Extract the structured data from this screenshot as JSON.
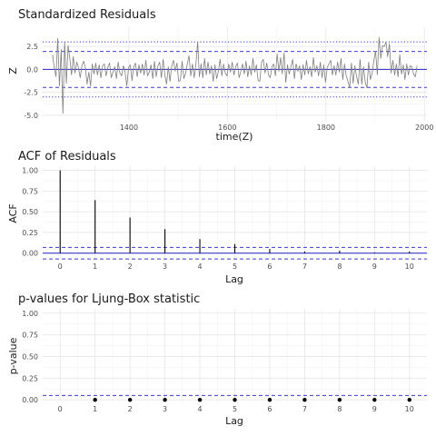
{
  "chart_data": [
    {
      "type": "line",
      "title": "Standardized Residuals",
      "xlabel": "time(Z)",
      "ylabel": "Z",
      "xlim": [
        1225,
        2005
      ],
      "ylim": [
        -5.6,
        4.6
      ],
      "x_ticks": [
        1400,
        1600,
        1800,
        2000
      ],
      "y_ticks": [
        -5.0,
        -2.5,
        0.0,
        2.5
      ],
      "y_tick_labels": [
        "-5.0",
        "-2.5",
        "0.0",
        "2.5"
      ],
      "series": [
        {
          "x_start": 1245,
          "x_end": 1985,
          "values": [
            1.6,
            0.2,
            -0.8,
            3.4,
            -1.8,
            2.2,
            -4.8,
            3.0,
            -1.5,
            2.6,
            1.2,
            -0.6,
            1.4,
            -0.4,
            0.8,
            0.2,
            -0.9,
            0.4,
            0.9,
            0.2,
            -1.6,
            -0.3,
            -1.8,
            0.6,
            -0.5,
            0.7,
            -0.6,
            0.5,
            -0.9,
            0.4,
            0.6,
            -0.7,
            0.2,
            0.7,
            -0.9,
            -0.3,
            0.3,
            -1.0,
            0.8,
            -0.4,
            -0.7,
            0.4,
            -0.3,
            -1.8,
            0.2,
            0.5,
            -1.2,
            0.3,
            0.7,
            -0.8,
            0.5,
            -0.4,
            0.6,
            -0.6,
            1.0,
            -0.7,
            -0.3,
            0.5,
            -1.0,
            0.9,
            -0.8,
            0.4,
            0.8,
            -0.9,
            1.1,
            -0.6,
            -1.6,
            0.3,
            -1.3,
            0.4,
            1.0,
            -0.2,
            0.7,
            -1.3,
            -1.2,
            0.9,
            -1.0,
            -0.4,
            0.6,
            1.5,
            -0.7,
            0.6,
            -0.9,
            0.6,
            3.0,
            -0.8,
            0.6,
            -0.9,
            1.2,
            -0.6,
            0.8,
            -0.5,
            0.4,
            -1.3,
            0.5,
            -1.0,
            -0.2,
            1.1,
            -0.7,
            0.6,
            -0.4,
            -0.7,
            0.6,
            -0.3,
            0.8,
            -0.6,
            0.3,
            0.7,
            -0.9,
            -0.2,
            0.6,
            -0.5,
            0.9,
            -0.8,
            0.4,
            -0.6,
            1.2,
            -0.3,
            0.5,
            -1.2,
            -1.3,
            0.8,
            1.1,
            -0.4,
            0.7,
            -0.6,
            -0.9,
            0.3,
            0.6,
            -0.7,
            1.7,
            -0.2,
            1.3,
            -0.5,
            1.8,
            -1.4,
            0.5,
            -0.5,
            0.3,
            1.1,
            -1.0,
            0.6,
            -0.2,
            0.4,
            -1.1,
            0.5,
            -0.6,
            1.0,
            -0.5,
            0.3,
            -0.8,
            1.3,
            -0.3,
            0.4,
            -0.7,
            0.8,
            -0.9,
            0.5,
            -1.4,
            0.2,
            0.6,
            1.0,
            -0.6,
            0.4,
            -0.6,
            0.8,
            -0.3,
            1.2,
            -1.1,
            0.6,
            -0.7,
            -1.3,
            -2.0,
            0.7,
            -1.5,
            0.4,
            -0.8,
            -1.6,
            1.1,
            -1.6,
            0.3,
            -1.4,
            -2.0,
            0.8,
            -1.1,
            -0.4,
            1.0,
            2.0,
            -0.6,
            3.5,
            1.2,
            2.6,
            2.5,
            3.0,
            1.4,
            2.8,
            -0.4,
            1.0,
            -0.6,
            0.6,
            -0.8,
            1.6,
            -0.5,
            0.5,
            -1.1,
            0.6,
            -0.6,
            0.4,
            0.3,
            -0.5,
            -0.8,
            0.4
          ]
        }
      ],
      "reference_lines": {
        "solid": [
          0
        ],
        "dashed": [
          -1.96,
          1.96
        ],
        "dotted": [
          -3,
          3
        ]
      },
      "colors": {
        "series": "#7f7f7f",
        "reference": "#3a3acc"
      },
      "grid": true
    },
    {
      "type": "bar",
      "title": "ACF of Residuals",
      "xlabel": "Lag",
      "ylabel": "ACF",
      "xlim": [
        -0.5,
        10.5
      ],
      "ylim": [
        -0.08,
        1.05
      ],
      "categories": [
        0,
        1,
        2,
        3,
        4,
        5,
        6,
        7,
        8,
        9,
        10
      ],
      "values": [
        1.0,
        0.64,
        0.43,
        0.29,
        0.17,
        0.11,
        0.05,
        0.02,
        0.03,
        0.01,
        0.02
      ],
      "y_ticks": [
        0.0,
        0.25,
        0.5,
        0.75,
        1.0
      ],
      "y_tick_labels": [
        "0.00",
        "0.25",
        "0.50",
        "0.75",
        "1.00"
      ],
      "reference_lines": {
        "solid": [
          0
        ],
        "dashed": [
          -0.07,
          0.07
        ]
      },
      "colors": {
        "bars": "#000000",
        "reference": "#3a3acc"
      },
      "grid": true
    },
    {
      "type": "scatter",
      "title": "p-values for Ljung-Box statistic",
      "xlabel": "Lag",
      "ylabel": "p-value",
      "xlim": [
        -0.5,
        10.5
      ],
      "ylim": [
        -0.03,
        1.05
      ],
      "x_ticks": [
        0,
        1,
        2,
        3,
        4,
        5,
        6,
        7,
        8,
        9,
        10
      ],
      "y_ticks": [
        0.0,
        0.25,
        0.5,
        0.75,
        1.0
      ],
      "y_tick_labels": [
        "0.00",
        "0.25",
        "0.50",
        "0.75",
        "1.00"
      ],
      "x": [
        1,
        2,
        3,
        4,
        5,
        6,
        7,
        8,
        9,
        10
      ],
      "values": [
        0,
        0,
        0,
        0,
        0,
        0,
        0,
        0,
        0,
        0
      ],
      "reference_lines": {
        "dashed": [
          0.05
        ]
      },
      "colors": {
        "points": "#000000",
        "reference": "#3a3acc"
      },
      "grid": true
    }
  ]
}
